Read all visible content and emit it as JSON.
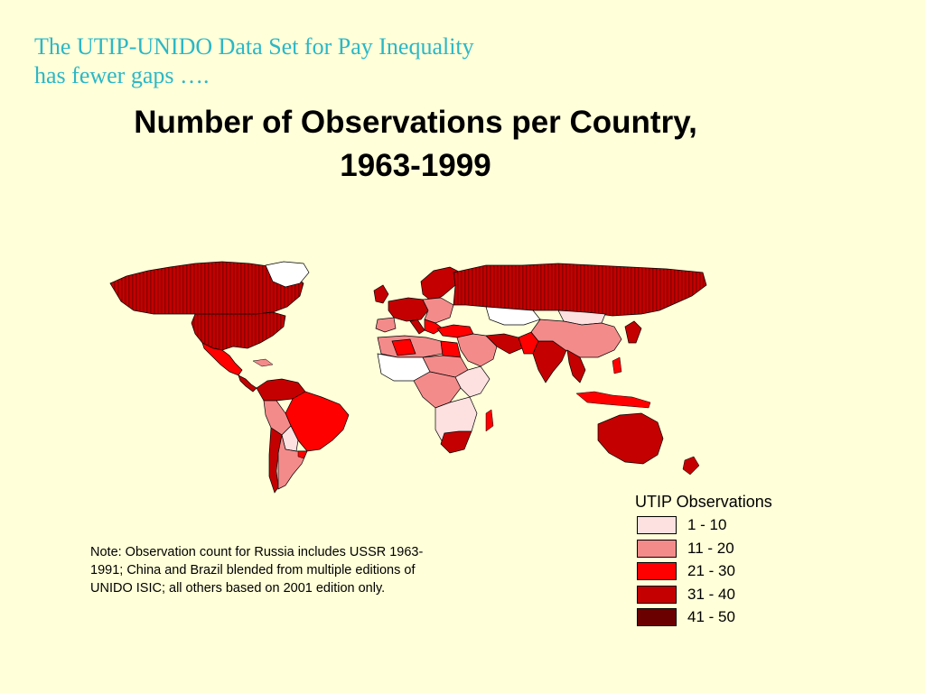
{
  "kicker": {
    "line1": "The UTIP-UNIDO Data Set for Pay Inequality",
    "line2": "has fewer gaps …."
  },
  "title": {
    "line1": "Number of Observations per Country,",
    "line2": "1963-1999"
  },
  "colors": {
    "background": "#ffffd9",
    "kicker_text": "#2bb7c6",
    "no_data": "#ffffff",
    "border": "#000000"
  },
  "legend": {
    "title": "UTIP Observations",
    "items": [
      {
        "label": "1 - 10",
        "color": "#fde0e0"
      },
      {
        "label": "11 - 20",
        "color": "#f48b8b"
      },
      {
        "label": "21 - 30",
        "color": "#ff0000"
      },
      {
        "label": "31 - 40",
        "color": "#c40000"
      },
      {
        "label": "41 - 50",
        "color": "#6b0000"
      }
    ]
  },
  "note": "Note: Observation count for Russia includes USSR 1963-1991; China and Brazil blended from multiple editions of UNIDO ISIC; all others based on 2001 edition only."
}
